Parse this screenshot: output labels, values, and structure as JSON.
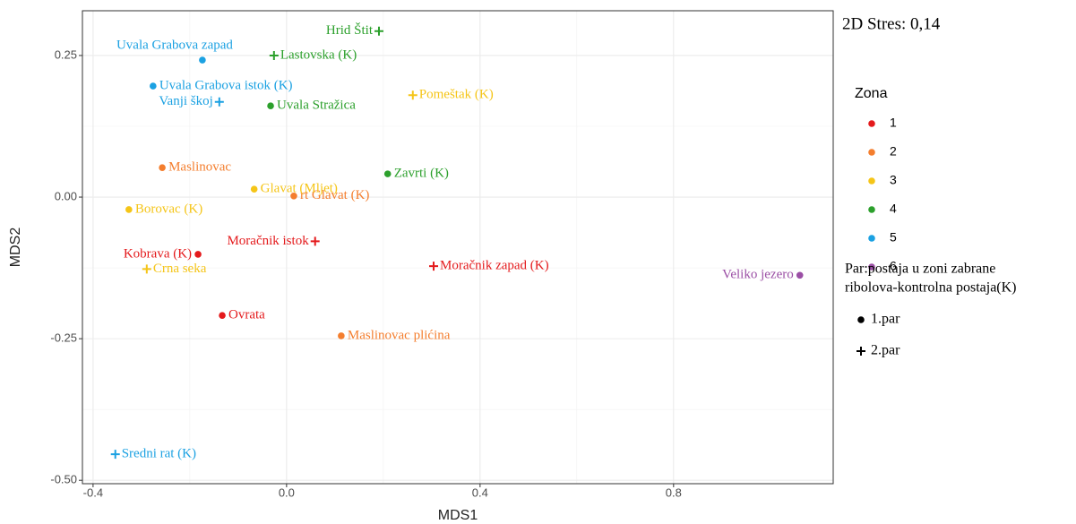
{
  "chart_data": {
    "type": "scatter",
    "annotation": "2D Stres: 0,14",
    "x_label": "MDS1",
    "y_label": "MDS2",
    "xlim": [
      -0.422,
      1.13
    ],
    "ylim": [
      -0.506,
      0.329
    ],
    "xticks": [
      {
        "value": -0.4,
        "label": "-0.4"
      },
      {
        "value": 0,
        "label": "0.0"
      },
      0.4,
      0.8
    ],
    "yticks": [
      {
        "value": -0.5,
        "label": "-0.50"
      },
      {
        "value": -0.25,
        "label": "-0.25"
      },
      {
        "value": 0,
        "label": "0.00"
      },
      0.25
    ],
    "grid": true,
    "legend_title": "Zona",
    "series": [
      {
        "name": "1",
        "color": "#e41a1c",
        "x": [
          -0.183,
          0.059,
          0.304,
          -0.133
        ],
        "values": [
          -0.101,
          -0.078,
          -0.122,
          -0.209
        ],
        "labels": [
          "Kobrava (K)",
          "Moračnik istok",
          "Moračnik zapad (K)",
          "Ovrata"
        ],
        "shapes": [
          "circle",
          "plus",
          "plus",
          "circle"
        ]
      },
      {
        "name": "2",
        "color": "#f47e2e",
        "x": [
          -0.257,
          0.015,
          0.113
        ],
        "values": [
          0.052,
          0.002,
          -0.245
        ],
        "labels": [
          "Maslinovac",
          "rt Glavat (K)",
          "Maslinovac plićina"
        ],
        "shapes": [
          "circle",
          "circle",
          "circle"
        ]
      },
      {
        "name": "3",
        "color": "#f5c518",
        "x": [
          -0.067,
          -0.326,
          -0.289,
          0.261
        ],
        "values": [
          0.014,
          -0.022,
          -0.127,
          0.18
        ],
        "labels": [
          "Glavat (Mljet)",
          "Borovac (K)",
          "Crna seka",
          "Pomeštak (K)"
        ],
        "shapes": [
          "circle",
          "circle",
          "plus",
          "plus"
        ]
      },
      {
        "name": "4",
        "color": "#2ca02c",
        "x": [
          0.191,
          -0.026,
          -0.033,
          0.209
        ],
        "values": [
          0.293,
          0.25,
          0.161,
          0.041
        ],
        "labels": [
          "Hrid Štit",
          "Lastovska (K)",
          "Uvala Stražica",
          "Zavrti (K)"
        ],
        "shapes": [
          "plus",
          "plus",
          "circle",
          "circle"
        ]
      },
      {
        "name": "5",
        "color": "#1ba1e2",
        "x": [
          -0.174,
          -0.276,
          -0.139,
          -0.354
        ],
        "values": [
          0.242,
          0.196,
          0.168,
          -0.454
        ],
        "labels": [
          "Uvala Grabova zapad",
          "Uvala Grabova istok (K)",
          "Vanji škoj",
          "Sredni rat (K)"
        ],
        "shapes": [
          "circle",
          "circle",
          "plus",
          "plus"
        ]
      },
      {
        "name": "6",
        "color": "#9b4fa5",
        "x": [
          1.061
        ],
        "values": [
          -0.138
        ],
        "labels": [
          "Veliko jezero"
        ],
        "shapes": [
          "circle"
        ]
      }
    ],
    "shape_legend": {
      "title": [
        "Par:postaja u zoni zabrane",
        "ribolova-kontrolna postaja(K)"
      ],
      "entries": [
        {
          "name": "1.par",
          "shape": "circle"
        },
        {
          "name": "2.par",
          "shape": "plus"
        }
      ]
    }
  }
}
